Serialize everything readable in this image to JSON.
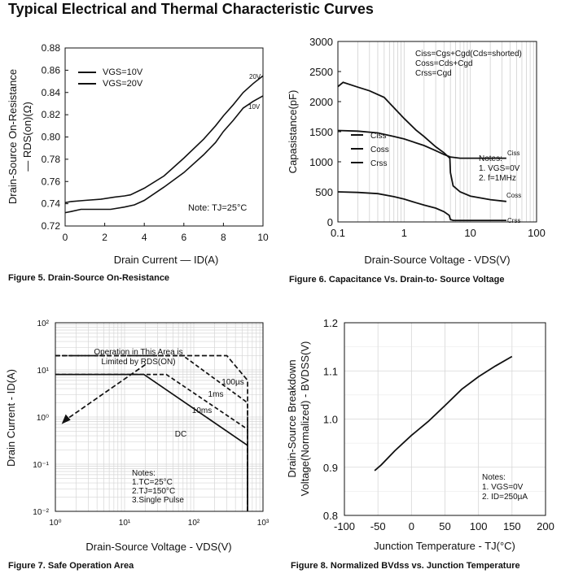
{
  "page_title": "Typical Electrical and Thermal Characteristic Curves",
  "captions": {
    "fig5": "Figure 5.  Drain-Source On-Resistance",
    "fig6": "Figure 6. Capacitance Vs. Drain-to- Source Voltage",
    "fig7": "Figure 7. Safe Operation Area",
    "fig8": "Figure 8. Normalized  BVdss vs. Junction Temperature"
  },
  "chart_data": [
    {
      "id": "fig5",
      "type": "line",
      "xlabel": "Drain Current — ID(A)",
      "ylabel_lines": [
        "Drain-Source On-Resistance",
        "— RDS(on)(Ω)"
      ],
      "xlim": [
        0,
        10
      ],
      "ylim": [
        0.72,
        0.88
      ],
      "x_ticks": [
        0,
        2,
        4,
        6,
        8,
        10
      ],
      "y_ticks": [
        0.72,
        0.74,
        0.76,
        0.78,
        0.8,
        0.82,
        0.84,
        0.86,
        0.88
      ],
      "legend": [
        "VGS=10V",
        "VGS=20V"
      ],
      "note": "Note: TJ=25°C",
      "series": [
        {
          "name": "20V",
          "points": [
            [
              0,
              0.741
            ],
            [
              0.3,
              0.742
            ],
            [
              1,
              0.743
            ],
            [
              1.8,
              0.744
            ],
            [
              2.5,
              0.746
            ],
            [
              3,
              0.747
            ],
            [
              3.3,
              0.748
            ],
            [
              4,
              0.754
            ],
            [
              5,
              0.765
            ],
            [
              6,
              0.781
            ],
            [
              7,
              0.798
            ],
            [
              7.6,
              0.81
            ],
            [
              8,
              0.819
            ],
            [
              8.5,
              0.829
            ],
            [
              9,
              0.84
            ],
            [
              9.5,
              0.848
            ],
            [
              10,
              0.855
            ]
          ]
        },
        {
          "name": "10V",
          "points": [
            [
              0,
              0.732
            ],
            [
              0.3,
              0.733
            ],
            [
              0.8,
              0.735
            ],
            [
              1.5,
              0.735
            ],
            [
              2.3,
              0.735
            ],
            [
              3,
              0.737
            ],
            [
              3.5,
              0.739
            ],
            [
              4,
              0.743
            ],
            [
              5,
              0.755
            ],
            [
              6,
              0.768
            ],
            [
              7,
              0.784
            ],
            [
              7.6,
              0.795
            ],
            [
              8,
              0.805
            ],
            [
              8.5,
              0.815
            ],
            [
              9,
              0.826
            ],
            [
              9.5,
              0.832
            ],
            [
              10,
              0.837
            ]
          ]
        }
      ]
    },
    {
      "id": "fig6",
      "type": "line",
      "xscale": "log",
      "xlabel": "Drain-Source Voltage - VDS(V)",
      "ylabel": "Capasistance(pF)",
      "xlim": [
        0.1,
        100
      ],
      "ylim": [
        0,
        3000
      ],
      "x_ticks": [
        "0.1",
        "1",
        "10",
        "100"
      ],
      "y_ticks": [
        0,
        500,
        1000,
        1500,
        2000,
        2500,
        3000
      ],
      "legend": [
        "Ciss",
        "Coss",
        "Crss"
      ],
      "formula_lines": [
        "Ciss=Cgs+Cgd(Cds=shorted)",
        "Coss=Cds+Cgd",
        "Crss=Cgd"
      ],
      "notes": [
        "Notes:",
        "1. VGS=0V",
        "2. f=1MHz"
      ],
      "series": [
        {
          "name": "Ciss",
          "points": [
            [
              0.1,
              1520
            ],
            [
              0.2,
              1510
            ],
            [
              0.4,
              1480
            ],
            [
              0.7,
              1420
            ],
            [
              1,
              1380
            ],
            [
              2,
              1270
            ],
            [
              3,
              1185
            ],
            [
              4,
              1120
            ],
            [
              5,
              1080
            ],
            [
              7,
              1060
            ],
            [
              10,
              1060
            ],
            [
              20,
              1060
            ],
            [
              35,
              1060
            ]
          ]
        },
        {
          "name": "Coss",
          "points": [
            [
              0.1,
              2250
            ],
            [
              0.12,
              2320
            ],
            [
              0.2,
              2240
            ],
            [
              0.3,
              2180
            ],
            [
              0.5,
              2070
            ],
            [
              0.7,
              1900
            ],
            [
              1,
              1720
            ],
            [
              1.5,
              1530
            ],
            [
              2,
              1420
            ],
            [
              3,
              1250
            ],
            [
              4,
              1150
            ],
            [
              4.9,
              1060
            ],
            [
              5,
              820
            ],
            [
              5.5,
              600
            ],
            [
              7,
              500
            ],
            [
              10,
              430
            ],
            [
              20,
              370
            ],
            [
              35,
              340
            ]
          ]
        },
        {
          "name": "Crss",
          "points": [
            [
              0.1,
              500
            ],
            [
              0.2,
              490
            ],
            [
              0.4,
              470
            ],
            [
              0.7,
              420
            ],
            [
              1,
              380
            ],
            [
              1.5,
              320
            ],
            [
              2,
              280
            ],
            [
              3,
              230
            ],
            [
              4,
              170
            ],
            [
              4.8,
              110
            ],
            [
              5,
              40
            ],
            [
              5.5,
              25
            ],
            [
              35,
              25
            ]
          ]
        }
      ],
      "curve_labels": [
        "Ciss",
        "Coss",
        "Crss"
      ]
    },
    {
      "id": "fig7",
      "type": "line",
      "xscale": "log",
      "yscale": "log",
      "xlabel": "Drain-Source Voltage - VDS(V)",
      "ylabel": "Drain Current - ID(A)",
      "xlim": [
        1,
        1000
      ],
      "ylim": [
        0.01,
        100
      ],
      "x_ticks": [
        "10⁰",
        "10¹",
        "10²",
        "10³"
      ],
      "y_ticks": [
        "10⁻²",
        "10⁻¹",
        "10⁰",
        "10¹",
        "10²"
      ],
      "limit_text": [
        "Operation in This Area is",
        "Limited by RDS(ON)"
      ],
      "notes": [
        "Notes:",
        "1.TC=25°C",
        "2.TJ=150°C",
        "3.Single Pulse"
      ],
      "series": [
        {
          "name": "DC",
          "points": [
            [
              1,
              8
            ],
            [
              19,
              8
            ],
            [
              600,
              0.25
            ],
            [
              600,
              0.01
            ]
          ]
        },
        {
          "name": "10ms",
          "points": [
            [
              1,
              8
            ],
            [
              19,
              8
            ],
            [
              40,
              8
            ],
            [
              600,
              0.55
            ],
            [
              600,
              0.01
            ]
          ]
        },
        {
          "name": "1ms",
          "points": [
            [
              1,
              20
            ],
            [
              30,
              20
            ],
            [
              70,
              20
            ],
            [
              600,
              2
            ],
            [
              600,
              0.01
            ]
          ]
        },
        {
          "name": "100µs",
          "points": [
            [
              1,
              20
            ],
            [
              300,
              20
            ],
            [
              600,
              6
            ],
            [
              600,
              0.01
            ]
          ]
        },
        {
          "name": "Rds_limit",
          "points": [
            [
              1.3,
              0.8
            ],
            [
              20,
              13
            ]
          ]
        }
      ],
      "curve_labels": [
        "100µs",
        "1ms",
        "10ms",
        "DC"
      ]
    },
    {
      "id": "fig8",
      "type": "line",
      "xlabel": "Junction Temperature - TJ(°C)",
      "ylabel_lines": [
        "Drain-Source Breakdown",
        "Voltage(Normalized) - BVDSS(V)"
      ],
      "xlim": [
        -100,
        200
      ],
      "ylim": [
        0.8,
        1.2
      ],
      "x_ticks": [
        -100,
        -50,
        0,
        50,
        100,
        150,
        200
      ],
      "y_ticks": [
        0.8,
        0.9,
        1.0,
        1.1,
        1.2
      ],
      "y_tick_labels": [
        "0.8",
        "0.9",
        "1.0",
        "1.1",
        "1.2"
      ],
      "notes": [
        "Notes:",
        "1. VGS=0V",
        "2. ID=250µA"
      ],
      "series": [
        {
          "name": "BVDSS",
          "points": [
            [
              -55,
              0.893
            ],
            [
              -45,
              0.905
            ],
            [
              -25,
              0.934
            ],
            [
              0,
              0.966
            ],
            [
              25,
              0.995
            ],
            [
              50,
              1.028
            ],
            [
              75,
              1.062
            ],
            [
              100,
              1.088
            ],
            [
              125,
              1.11
            ],
            [
              150,
              1.13
            ]
          ]
        }
      ]
    }
  ]
}
